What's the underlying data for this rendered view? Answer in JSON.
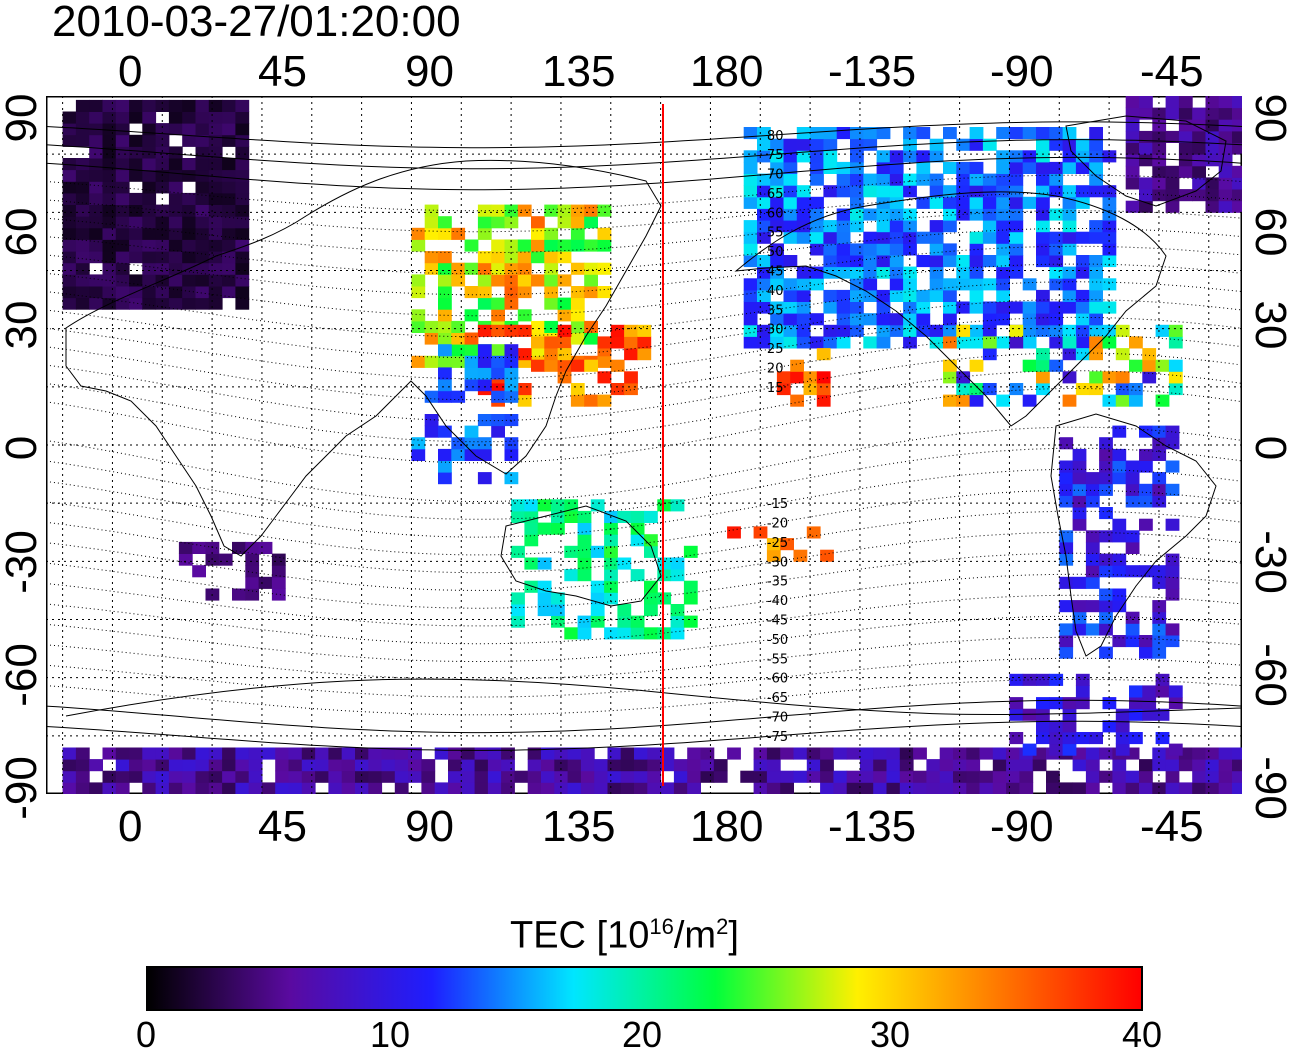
{
  "title": "2010-03-27/01:20:00",
  "x_ticks": [
    "0",
    "45",
    "90",
    "135",
    "180",
    "-135",
    "-90",
    "-45"
  ],
  "y_ticks": [
    "90",
    "60",
    "30",
    "0",
    "-30",
    "-60",
    "-90"
  ],
  "mlat_labels": [
    "80",
    "75",
    "70",
    "65",
    "60",
    "55",
    "50",
    "45",
    "40",
    "35",
    "30",
    "25",
    "20",
    "15",
    "-15",
    "-20",
    "-25",
    "-30",
    "-35",
    "-40",
    "-45",
    "-50",
    "-55",
    "-60",
    "-65",
    "-70",
    "-75"
  ],
  "colorbar": {
    "label_prefix": "TEC  [10",
    "label_exp1": "16",
    "label_mid": "/m",
    "label_exp2": "2",
    "label_suffix": "]",
    "ticks": [
      "0",
      "10",
      "20",
      "30",
      "40"
    ],
    "range": [
      0,
      40
    ],
    "colors": [
      "#000000",
      "#5a0aa0",
      "#1e1eff",
      "#00e6ff",
      "#00ff3c",
      "#fff000",
      "#ff7800",
      "#ff0000"
    ]
  },
  "map_settings": {
    "lon_range": [
      -20,
      340
    ],
    "lat_range": [
      -90,
      90
    ],
    "grid_spacing_deg": 15,
    "red_line_lon": 160,
    "line_color": "#ff0000"
  }
}
